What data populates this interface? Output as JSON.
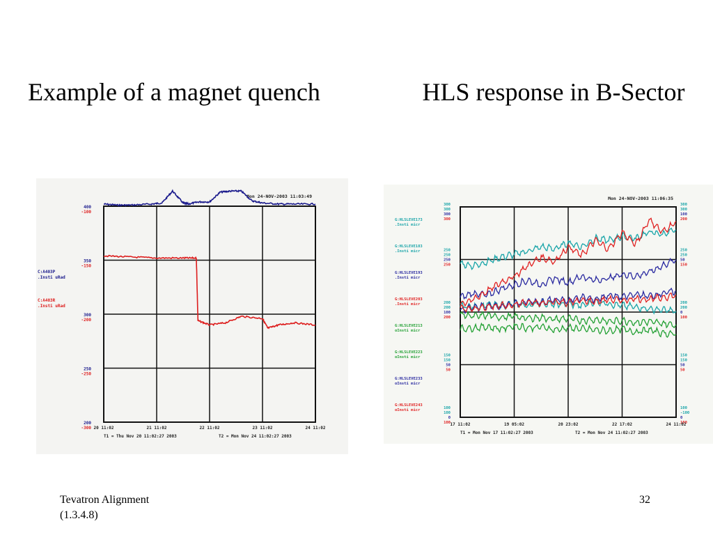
{
  "slide": {
    "title_left": "Example of a magnet quench",
    "title_right": "HLS response in B-Sector",
    "footer_line1": "Tevatron Alignment",
    "footer_line2": "(1.3.4.8)",
    "page_number": "32"
  },
  "chart_data": [
    {
      "type": "line",
      "timestamp": "Mon 24-NOV-2003 11:03:49",
      "x_ticks": [
        "20 11:02",
        "21 11:02",
        "22 11:02",
        "23 11:02",
        "24 11:02"
      ],
      "t1": "T1 = Thu Nov 20 11:02:27 2003",
      "t2": "T2 = Mon Nov 24 11:02:27 2003",
      "left_axis_pairs": [
        [
          "400",
          "-100"
        ],
        [
          "350",
          "-150"
        ],
        [
          "300",
          "-200"
        ],
        [
          "250",
          "-250"
        ],
        [
          "200",
          "-300"
        ]
      ],
      "series": [
        {
          "name": "C:A403P",
          "unit": ".Insti uRad",
          "color": "#1a1a8c",
          "x": [
            0,
            0.25,
            0.5,
            0.9,
            1.1,
            1.3,
            1.5,
            1.6,
            1.8,
            2.0,
            2.2,
            2.4,
            2.6,
            2.8,
            3.0,
            3.3,
            3.6,
            4.0
          ],
          "values": [
            402,
            401,
            401,
            402,
            403,
            414,
            403,
            402,
            404,
            404,
            413,
            414,
            414,
            405,
            403,
            402,
            402,
            402
          ]
        },
        {
          "name": "C:A403R",
          "unit": ".Insti uRad",
          "color": "#dd1c1c",
          "x": [
            0,
            0.5,
            1.0,
            1.5,
            1.75,
            1.78,
            2.0,
            2.3,
            2.6,
            3.0,
            3.1,
            3.3,
            3.6,
            4.0
          ],
          "values": [
            -146,
            -147,
            -148,
            -148,
            -148,
            -206,
            -210,
            -208,
            -202,
            -204,
            -213,
            -210,
            -208,
            -210
          ]
        }
      ]
    },
    {
      "type": "line",
      "timestamp": "Mon 24-NOV-2003 11:06:35",
      "x_ticks": [
        "17 11:02",
        "19 05:02",
        "20 23:02",
        "22 17:02",
        "24 11:02"
      ],
      "t1": "T1 = Mon Nov 17 11:02:27 2003",
      "t2": "T2 = Mon Nov 24 11:02:27 2003",
      "left_axis": [
        [
          "300",
          "300",
          "300",
          "300"
        ],
        [
          "250",
          "250",
          "250",
          "250"
        ],
        [
          "200",
          "200",
          "100",
          "200"
        ],
        [
          "150",
          "150",
          "50",
          "50"
        ],
        [
          "100",
          "100",
          "0",
          "100"
        ]
      ],
      "right_axis": [
        [
          "300",
          "300",
          "100",
          "200"
        ],
        [
          "250",
          "250",
          "50",
          "150"
        ],
        [
          "200",
          "200",
          "0",
          "100"
        ],
        [
          "150",
          "150",
          "50",
          "50"
        ],
        [
          "100",
          "-100",
          "0",
          "100"
        ]
      ],
      "series": [
        {
          "name": "G:HLSLEVE173",
          "unit": ".Insti micr",
          "color": "#18a4a8",
          "values": [
            246,
            244,
            248,
            252,
            255,
            258,
            262,
            260,
            266,
            262,
            270,
            268,
            272,
            270,
            276,
            274,
            278
          ]
        },
        {
          "name": "G:HLSLEVE183",
          "unit": ".Insti micr",
          "color": "#18a4a8",
          "values": [
            206,
            205,
            207,
            206,
            208,
            206,
            209,
            207,
            208,
            206,
            210,
            208,
            206,
            205,
            203,
            202,
            201
          ]
        },
        {
          "name": "G:HLSLEVE193",
          "unit": ".Insti micr",
          "color": "#2a2aa0",
          "values": [
            214,
            218,
            216,
            222,
            226,
            230,
            226,
            232,
            228,
            234,
            230,
            232,
            236,
            234,
            238,
            244,
            250
          ]
        },
        {
          "name": "G:HLSLEVE203",
          "unit": ".Insti micr",
          "color": "#e02020",
          "values": [
            208,
            212,
            220,
            228,
            234,
            244,
            252,
            248,
            262,
            254,
            268,
            260,
            276,
            264,
            288,
            276,
            286
          ]
        },
        {
          "name": "G:HLSLEVE213",
          "unit": "oInsti micr",
          "color": "#22a033",
          "values": [
            198,
            196,
            197,
            195,
            196,
            194,
            195,
            193,
            194,
            192,
            193,
            191,
            192,
            190,
            191,
            189,
            188
          ]
        },
        {
          "name": "G:HLSLEVE223",
          "unit": "oInsti micr",
          "color": "#22a033",
          "values": [
            184,
            185,
            186,
            184,
            187,
            185,
            186,
            183,
            185,
            184,
            183,
            182,
            184,
            181,
            183,
            180,
            179
          ]
        },
        {
          "name": "G:HLSLEVE233",
          "unit": "oInsti micr",
          "color": "#2a2aa0",
          "values": [
            202,
            204,
            206,
            205,
            208,
            210,
            209,
            212,
            211,
            214,
            212,
            216,
            214,
            217,
            215,
            218,
            220
          ]
        },
        {
          "name": "G:HLSLEVE243",
          "unit": "oInsti micr",
          "color": "#e02020",
          "values": [
            204,
            203,
            205,
            206,
            207,
            209,
            208,
            210,
            209,
            211,
            210,
            212,
            211,
            213,
            212,
            214,
            216
          ]
        }
      ],
      "ylim": [
        100,
        300
      ]
    }
  ]
}
